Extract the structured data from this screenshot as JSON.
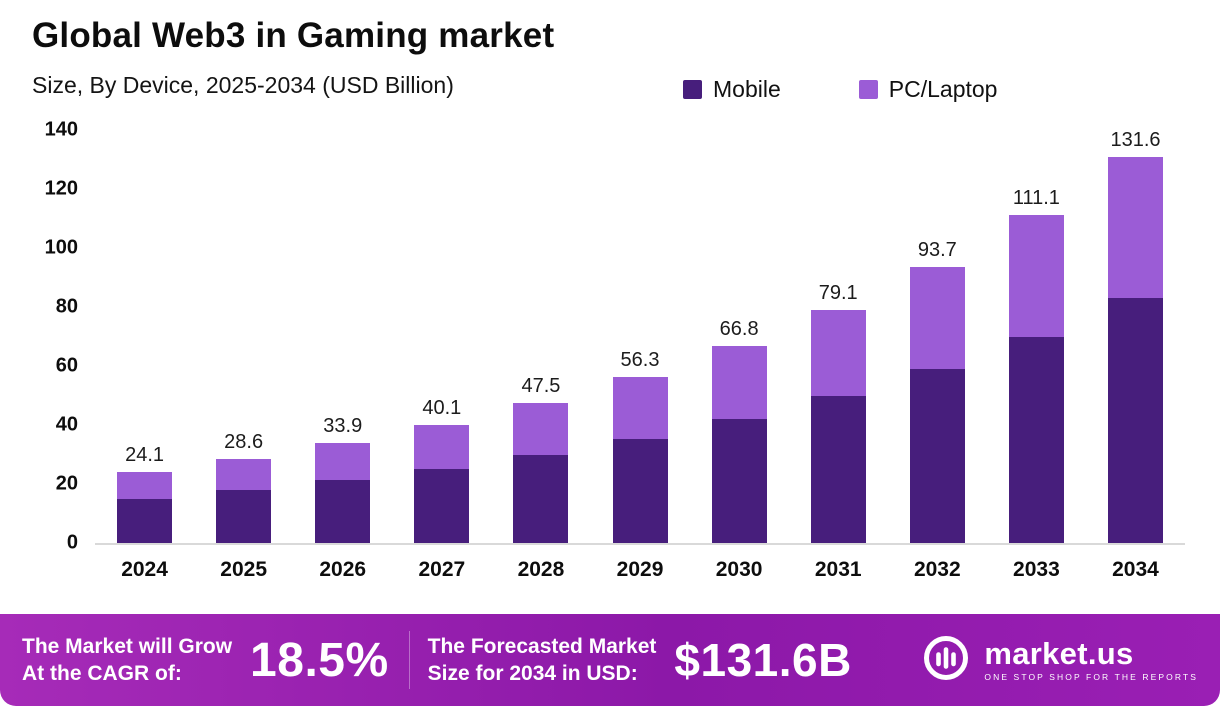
{
  "header": {
    "title": "Global Web3 in Gaming market",
    "subtitle": "Size, By Device, 2025-2034 (USD Billion)"
  },
  "legend": [
    {
      "label": "Mobile",
      "color": "#471e7c"
    },
    {
      "label": "PC/Laptop",
      "color": "#9b5cd6"
    }
  ],
  "chart_data": {
    "type": "bar",
    "stacked": true,
    "title": "Global Web3 in Gaming market Size, By Device, 2025-2034 (USD Billion)",
    "categories": [
      "2024",
      "2025",
      "2026",
      "2027",
      "2028",
      "2029",
      "2030",
      "2031",
      "2032",
      "2033",
      "2034"
    ],
    "series": [
      {
        "name": "Mobile",
        "color": "#471e7c",
        "values": [
          15.0,
          18.0,
          21.2,
          25.1,
          29.8,
          35.4,
          42.0,
          49.8,
          59.0,
          69.9,
          83.6
        ]
      },
      {
        "name": "PC/Laptop",
        "color": "#9b5cd6",
        "values": [
          9.1,
          10.6,
          12.7,
          15.0,
          17.7,
          20.9,
          24.8,
          29.3,
          34.7,
          41.2,
          48.0
        ]
      }
    ],
    "totals": [
      24.1,
      28.6,
      33.9,
      40.1,
      47.5,
      56.3,
      66.8,
      79.1,
      93.7,
      111.1,
      131.6
    ],
    "total_labels": [
      "24.1",
      "28.6",
      "33.9",
      "40.1",
      "47.5",
      "56.3",
      "66.8",
      "79.1",
      "93.7",
      "111.1",
      "131.6"
    ],
    "xlabel": "",
    "ylabel": "",
    "ylim": [
      0,
      140
    ],
    "yticks": [
      0,
      20,
      40,
      60,
      80,
      100,
      120,
      140
    ],
    "grid": false,
    "legend_position": "top-right"
  },
  "footer": {
    "cagr_label_line1": "The Market will Grow",
    "cagr_label_line2": "At the CAGR of:",
    "cagr_value": "18.5%",
    "forecast_label_line1": "The Forecasted Market",
    "forecast_label_line2": "Size for 2034 in USD:",
    "forecast_value": "$131.6B",
    "brand_name": "market.us",
    "brand_tagline": "ONE STOP SHOP FOR THE REPORTS"
  }
}
